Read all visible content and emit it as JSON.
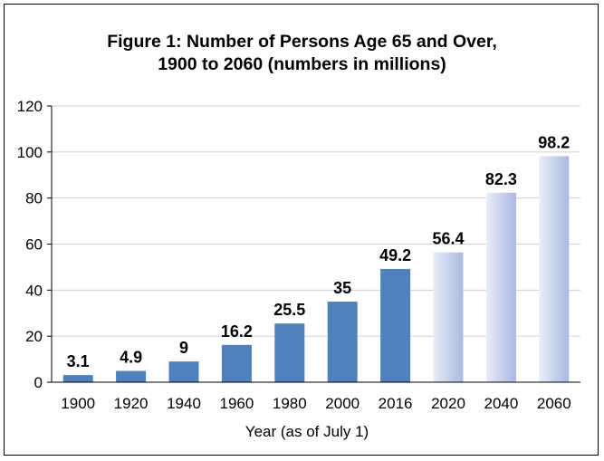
{
  "chart_data": {
    "type": "bar",
    "title_line1": "Figure 1:  Number of Persons Age 65 and Over,",
    "title_line2": "1900 to 2060 (numbers in millions)",
    "xlabel": "Year (as of July 1)",
    "ylabel": "",
    "ylim": [
      0,
      120
    ],
    "yticks": [
      "0",
      "20",
      "40",
      "60",
      "80",
      "100",
      "120"
    ],
    "grid": true,
    "categories": [
      "1900",
      "1920",
      "1940",
      "1960",
      "1980",
      "2000",
      "2016",
      "2020",
      "2040",
      "2060"
    ],
    "values": [
      3.1,
      4.9,
      9,
      16.2,
      25.5,
      35,
      49.2,
      56.4,
      82.3,
      98.2
    ],
    "value_labels": [
      "3.1",
      "4.9",
      "9",
      "16.2",
      "25.5",
      "35",
      "49.2",
      "56.4",
      "82.3",
      "98.2"
    ],
    "projected_from_index": 7,
    "colors": {
      "actual": "#4f81bd",
      "projected_light": "#e9edf8",
      "projected_dark": "#aab9e0",
      "grid": "#d0d0d0",
      "axis": "#000000"
    }
  }
}
